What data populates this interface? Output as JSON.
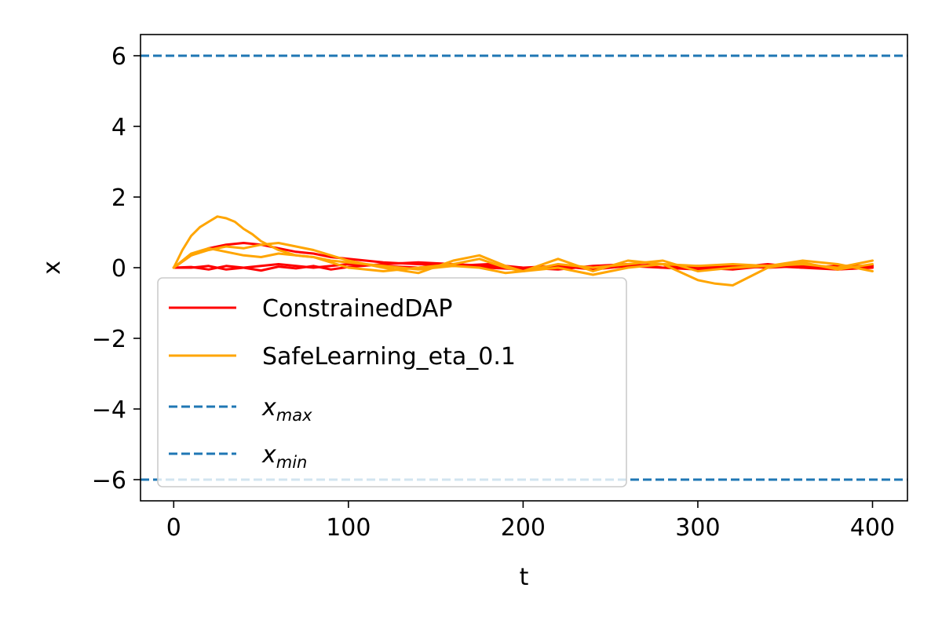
{
  "chart_data": {
    "type": "line",
    "xlabel": "t",
    "ylabel": "x",
    "xlim": [
      -19,
      420
    ],
    "ylim": [
      -6.6,
      6.6
    ],
    "xticks": [
      0,
      100,
      200,
      300,
      400
    ],
    "yticks": [
      6,
      4,
      2,
      0,
      -2,
      -4,
      -6
    ],
    "ytick_labels": [
      "6",
      "4",
      "2",
      "0",
      "−2",
      "−4",
      "−6"
    ],
    "grid": false,
    "legend_position": "lower-left",
    "series": [
      {
        "name": "ConstrainedDAP",
        "color": "#ff0000",
        "style": "solid",
        "x": [
          0,
          10,
          20,
          30,
          40,
          50,
          60,
          70,
          80,
          90,
          100,
          120,
          140,
          160,
          180,
          200,
          220,
          240,
          260,
          280,
          300,
          320,
          340,
          360,
          380,
          400
        ],
        "y": [
          0,
          0.02,
          -0.05,
          0.05,
          0.0,
          -0.08,
          0.03,
          -0.02,
          0.05,
          -0.05,
          0.02,
          0.1,
          0.15,
          0.1,
          0.05,
          0.0,
          0.05,
          -0.05,
          0.05,
          0.0,
          -0.05,
          0.05,
          0.0,
          0.05,
          -0.05,
          0.0
        ]
      },
      {
        "name": "ConstrainedDAP",
        "color": "#ff0000",
        "style": "solid",
        "x": [
          0,
          10,
          20,
          30,
          40,
          50,
          60,
          70,
          80,
          90,
          100,
          120,
          140,
          160,
          180,
          200,
          220,
          240,
          260,
          280,
          300,
          320,
          340,
          360,
          380,
          400
        ],
        "y": [
          0,
          0.35,
          0.55,
          0.65,
          0.7,
          0.65,
          0.55,
          0.45,
          0.4,
          0.3,
          0.25,
          0.15,
          0.1,
          0.05,
          0.1,
          0.0,
          -0.05,
          0.05,
          0.1,
          0.0,
          0.05,
          0.0,
          0.1,
          0.0,
          0.05,
          0.05
        ]
      },
      {
        "name": "ConstrainedDAP",
        "color": "#ff0000",
        "style": "solid",
        "x": [
          0,
          10,
          20,
          30,
          40,
          50,
          60,
          70,
          80,
          90,
          100,
          120,
          140,
          160,
          180,
          200,
          220,
          240,
          260,
          280,
          300,
          320,
          340,
          360,
          380,
          400
        ],
        "y": [
          0,
          0.0,
          0.05,
          -0.05,
          0.0,
          0.05,
          0.1,
          0.05,
          0.0,
          0.05,
          0.1,
          0.05,
          0.0,
          0.1,
          0.0,
          -0.05,
          0.05,
          0.0,
          0.05,
          0.1,
          0.0,
          -0.05,
          0.05,
          0.0,
          -0.05,
          0.05
        ]
      },
      {
        "name": "SafeLearning_eta_0.1",
        "color": "#ffa500",
        "style": "solid",
        "x": [
          0,
          5,
          10,
          15,
          20,
          25,
          30,
          35,
          40,
          45,
          50,
          60,
          70,
          80,
          90,
          100,
          120,
          140,
          160,
          175,
          190,
          200,
          220,
          240,
          260,
          280,
          300,
          310,
          320,
          340,
          360,
          380,
          400
        ],
        "y": [
          0,
          0.5,
          0.9,
          1.15,
          1.3,
          1.45,
          1.4,
          1.3,
          1.1,
          0.95,
          0.75,
          0.5,
          0.35,
          0.3,
          0.2,
          0.15,
          0.05,
          -0.05,
          0.05,
          0.0,
          -0.15,
          -0.1,
          0.0,
          -0.2,
          0.0,
          0.1,
          -0.35,
          -0.45,
          -0.5,
          0.0,
          0.15,
          -0.05,
          0.1
        ]
      },
      {
        "name": "SafeLearning_eta_0.1",
        "color": "#ffa500",
        "style": "solid",
        "x": [
          0,
          10,
          20,
          30,
          40,
          50,
          60,
          70,
          80,
          90,
          100,
          120,
          140,
          160,
          175,
          190,
          200,
          220,
          240,
          260,
          280,
          300,
          320,
          340,
          360,
          380,
          400
        ],
        "y": [
          0,
          0.35,
          0.5,
          0.6,
          0.55,
          0.65,
          0.7,
          0.6,
          0.5,
          0.35,
          0.2,
          0.0,
          -0.15,
          0.2,
          0.35,
          0.05,
          -0.1,
          0.25,
          -0.1,
          0.2,
          0.1,
          0.05,
          0.1,
          0.05,
          0.1,
          0.0,
          0.2
        ]
      },
      {
        "name": "SafeLearning_eta_0.1",
        "color": "#ffa500",
        "style": "solid",
        "x": [
          0,
          10,
          20,
          30,
          40,
          50,
          60,
          70,
          80,
          90,
          100,
          120,
          140,
          160,
          175,
          190,
          200,
          220,
          240,
          260,
          280,
          300,
          320,
          340,
          360,
          380,
          400
        ],
        "y": [
          0,
          0.4,
          0.55,
          0.45,
          0.35,
          0.3,
          0.4,
          0.35,
          0.3,
          0.15,
          0.0,
          -0.1,
          0.0,
          0.1,
          0.25,
          0.0,
          -0.1,
          0.1,
          0.0,
          0.1,
          0.2,
          -0.1,
          0.0,
          0.05,
          0.2,
          0.1,
          -0.1
        ]
      }
    ],
    "hlines": [
      {
        "name": "x_max",
        "y": 6,
        "color": "#1f77b4",
        "style": "dashed"
      },
      {
        "name": "x_min",
        "y": -6,
        "color": "#1f77b4",
        "style": "dashed"
      }
    ],
    "legend": [
      {
        "label": "ConstrainedDAP",
        "color": "#ff0000",
        "style": "solid"
      },
      {
        "label": "SafeLearning_eta_0.1",
        "color": "#ffa500",
        "style": "solid"
      },
      {
        "label_base": "x",
        "label_sub": "max",
        "color": "#1f77b4",
        "style": "dashed"
      },
      {
        "label_base": "x",
        "label_sub": "min",
        "color": "#1f77b4",
        "style": "dashed"
      }
    ]
  }
}
